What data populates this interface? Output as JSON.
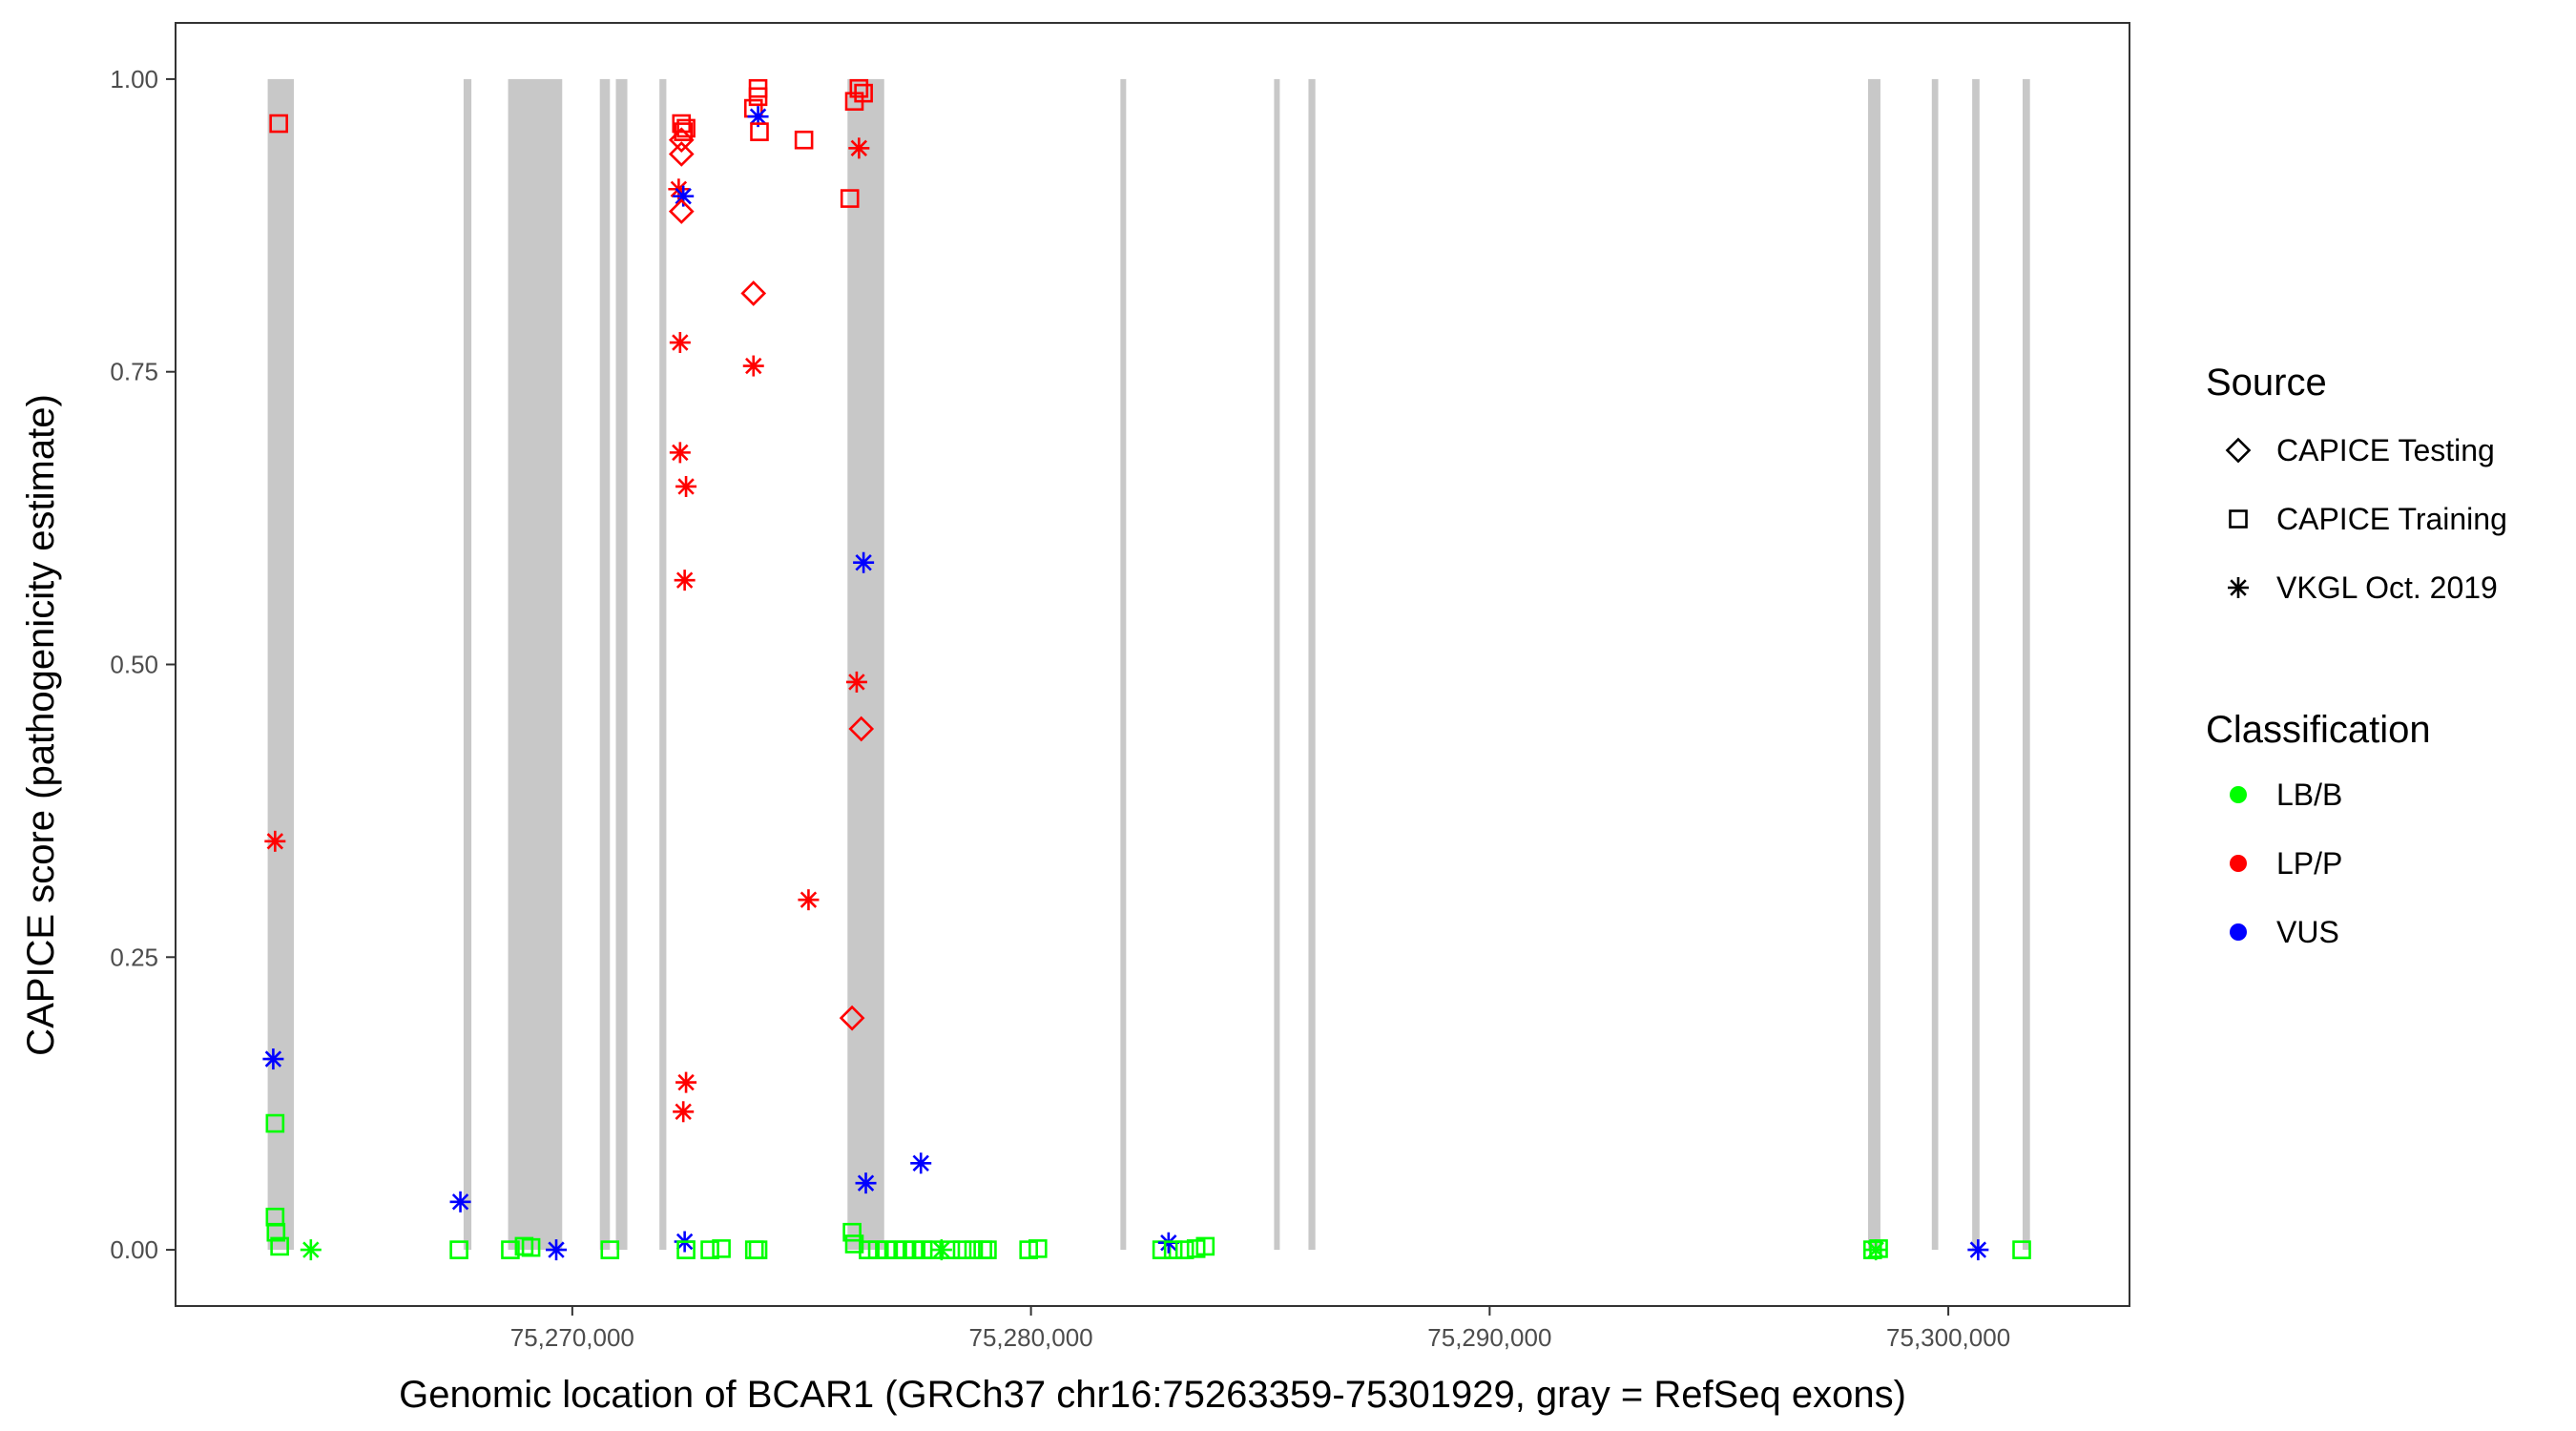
{
  "chart_data": {
    "type": "scatter",
    "title": "",
    "xlabel": "Genomic location of BCAR1 (GRCh37 chr16:75263359-75301929, gray = RefSeq exons)",
    "ylabel": "CAPICE score (pathogenicity estimate)",
    "xlim": [
      75261350,
      75303950
    ],
    "ylim": [
      -0.048,
      1.048
    ],
    "x_ticks": [
      75270000,
      75280000,
      75290000,
      75300000
    ],
    "x_tick_labels": [
      "75,270,000",
      "75,280,000",
      "75,290,000",
      "75,300,000"
    ],
    "y_ticks": [
      0,
      0.25,
      0.5,
      0.75,
      1.0
    ],
    "y_tick_labels": [
      "0.00",
      "0.25",
      "0.50",
      "0.75",
      "1.00"
    ],
    "grid": false,
    "exons": [
      [
        75263359,
        75263930
      ],
      [
        75267630,
        75267800
      ],
      [
        75268600,
        75269780
      ],
      [
        75270600,
        75270820
      ],
      [
        75270950,
        75271200
      ],
      [
        75271900,
        75272050
      ],
      [
        75276000,
        75276800
      ],
      [
        75281950,
        75282050
      ],
      [
        75285300,
        75285420
      ],
      [
        75286050,
        75286200
      ],
      [
        75298250,
        75298520
      ],
      [
        75299640,
        75299780
      ],
      [
        75300520,
        75300680
      ],
      [
        75301620,
        75301780
      ]
    ],
    "colors": {
      "LB/B": "#00ff00",
      "LP/P": "#ff0000",
      "VUS": "#0000ff",
      "exon": "#c8c8c8"
    },
    "legend": {
      "position": "right",
      "source_title": "Source",
      "source_items": [
        {
          "label": "CAPICE Testing",
          "shape": "diamond"
        },
        {
          "label": "CAPICE Training",
          "shape": "square"
        },
        {
          "label": "VKGL Oct. 2019",
          "shape": "asterisk"
        }
      ],
      "class_title": "Classification",
      "class_items": [
        {
          "label": "LB/B"
        },
        {
          "label": "LP/P"
        },
        {
          "label": "VUS"
        }
      ]
    },
    "points": [
      {
        "x": 75263600,
        "y": 0.962,
        "source": "CAPICE Training",
        "class": "LP/P"
      },
      {
        "x": 75263520,
        "y": 0.108,
        "source": "CAPICE Training",
        "class": "LB/B"
      },
      {
        "x": 75263520,
        "y": 0.028,
        "source": "CAPICE Training",
        "class": "LB/B"
      },
      {
        "x": 75263540,
        "y": 0.015,
        "source": "CAPICE Training",
        "class": "LB/B"
      },
      {
        "x": 75263620,
        "y": 0.003,
        "source": "CAPICE Training",
        "class": "LB/B"
      },
      {
        "x": 75263520,
        "y": 0.349,
        "source": "VKGL Oct. 2019",
        "class": "LP/P"
      },
      {
        "x": 75263480,
        "y": 0.163,
        "source": "VKGL Oct. 2019",
        "class": "VUS"
      },
      {
        "x": 75264300,
        "y": 0.0,
        "source": "VKGL Oct. 2019",
        "class": "LB/B"
      },
      {
        "x": 75267530,
        "y": 0.0,
        "source": "CAPICE Training",
        "class": "LB/B"
      },
      {
        "x": 75267560,
        "y": 0.041,
        "source": "VKGL Oct. 2019",
        "class": "VUS"
      },
      {
        "x": 75268650,
        "y": 0.0,
        "source": "CAPICE Training",
        "class": "LB/B"
      },
      {
        "x": 75268950,
        "y": 0.003,
        "source": "CAPICE Training",
        "class": "LB/B"
      },
      {
        "x": 75269100,
        "y": 0.002,
        "source": "CAPICE Training",
        "class": "LB/B"
      },
      {
        "x": 75269650,
        "y": 0.0,
        "source": "VKGL Oct. 2019",
        "class": "VUS"
      },
      {
        "x": 75270820,
        "y": 0.0,
        "source": "CAPICE Training",
        "class": "LB/B"
      },
      {
        "x": 75272380,
        "y": 0.962,
        "source": "CAPICE Training",
        "class": "LP/P"
      },
      {
        "x": 75272420,
        "y": 0.955,
        "source": "CAPICE Training",
        "class": "LP/P"
      },
      {
        "x": 75272480,
        "y": 0.958,
        "source": "CAPICE Training",
        "class": "LP/P"
      },
      {
        "x": 75272380,
        "y": 0.948,
        "source": "CAPICE Testing",
        "class": "LP/P"
      },
      {
        "x": 75272380,
        "y": 0.936,
        "source": "CAPICE Testing",
        "class": "LP/P"
      },
      {
        "x": 75272320,
        "y": 0.906,
        "source": "VKGL Oct. 2019",
        "class": "LP/P"
      },
      {
        "x": 75272420,
        "y": 0.9,
        "source": "VKGL Oct. 2019",
        "class": "VUS"
      },
      {
        "x": 75272380,
        "y": 0.887,
        "source": "CAPICE Testing",
        "class": "LP/P"
      },
      {
        "x": 75272350,
        "y": 0.775,
        "source": "VKGL Oct. 2019",
        "class": "LP/P"
      },
      {
        "x": 75272350,
        "y": 0.681,
        "source": "VKGL Oct. 2019",
        "class": "LP/P"
      },
      {
        "x": 75272480,
        "y": 0.652,
        "source": "VKGL Oct. 2019",
        "class": "LP/P"
      },
      {
        "x": 75272450,
        "y": 0.572,
        "source": "VKGL Oct. 2019",
        "class": "LP/P"
      },
      {
        "x": 75272480,
        "y": 0.143,
        "source": "VKGL Oct. 2019",
        "class": "LP/P"
      },
      {
        "x": 75272420,
        "y": 0.118,
        "source": "VKGL Oct. 2019",
        "class": "LP/P"
      },
      {
        "x": 75272450,
        "y": 0.007,
        "source": "VKGL Oct. 2019",
        "class": "VUS"
      },
      {
        "x": 75272480,
        "y": 0.0,
        "source": "CAPICE Training",
        "class": "LB/B"
      },
      {
        "x": 75273000,
        "y": 0.0,
        "source": "CAPICE Training",
        "class": "LB/B"
      },
      {
        "x": 75273250,
        "y": 0.001,
        "source": "CAPICE Training",
        "class": "LB/B"
      },
      {
        "x": 75274050,
        "y": 0.992,
        "source": "CAPICE Training",
        "class": "LP/P"
      },
      {
        "x": 75274050,
        "y": 0.985,
        "source": "CAPICE Training",
        "class": "LP/P"
      },
      {
        "x": 75273950,
        "y": 0.975,
        "source": "CAPICE Training",
        "class": "LP/P"
      },
      {
        "x": 75274050,
        "y": 0.968,
        "source": "VKGL Oct. 2019",
        "class": "VUS"
      },
      {
        "x": 75274080,
        "y": 0.955,
        "source": "CAPICE Training",
        "class": "LP/P"
      },
      {
        "x": 75273950,
        "y": 0.817,
        "source": "CAPICE Testing",
        "class": "LP/P"
      },
      {
        "x": 75273950,
        "y": 0.755,
        "source": "VKGL Oct. 2019",
        "class": "LP/P"
      },
      {
        "x": 75273970,
        "y": 0.0,
        "source": "CAPICE Training",
        "class": "LB/B"
      },
      {
        "x": 75274050,
        "y": 0.0,
        "source": "CAPICE Training",
        "class": "LB/B"
      },
      {
        "x": 75275050,
        "y": 0.948,
        "source": "CAPICE Training",
        "class": "LP/P"
      },
      {
        "x": 75275150,
        "y": 0.299,
        "source": "VKGL Oct. 2019",
        "class": "LP/P"
      },
      {
        "x": 75276050,
        "y": 0.898,
        "source": "CAPICE Training",
        "class": "LP/P"
      },
      {
        "x": 75276150,
        "y": 0.981,
        "source": "CAPICE Training",
        "class": "LP/P"
      },
      {
        "x": 75276250,
        "y": 0.992,
        "source": "CAPICE Training",
        "class": "LP/P"
      },
      {
        "x": 75276350,
        "y": 0.988,
        "source": "CAPICE Training",
        "class": "LP/P"
      },
      {
        "x": 75276250,
        "y": 0.941,
        "source": "VKGL Oct. 2019",
        "class": "LP/P"
      },
      {
        "x": 75276350,
        "y": 0.587,
        "source": "VKGL Oct. 2019",
        "class": "VUS"
      },
      {
        "x": 75276200,
        "y": 0.485,
        "source": "VKGL Oct. 2019",
        "class": "LP/P"
      },
      {
        "x": 75276300,
        "y": 0.445,
        "source": "CAPICE Testing",
        "class": "LP/P"
      },
      {
        "x": 75276100,
        "y": 0.198,
        "source": "CAPICE Testing",
        "class": "LP/P"
      },
      {
        "x": 75276400,
        "y": 0.057,
        "source": "VKGL Oct. 2019",
        "class": "VUS"
      },
      {
        "x": 75277600,
        "y": 0.074,
        "source": "VKGL Oct. 2019",
        "class": "VUS"
      },
      {
        "x": 75276100,
        "y": 0.015,
        "source": "CAPICE Training",
        "class": "LB/B"
      },
      {
        "x": 75276150,
        "y": 0.005,
        "source": "CAPICE Training",
        "class": "LB/B"
      },
      {
        "x": 75276450,
        "y": 0.0,
        "source": "CAPICE Training",
        "class": "LB/B"
      },
      {
        "x": 75276650,
        "y": 0.0,
        "source": "CAPICE Training",
        "class": "LB/B"
      },
      {
        "x": 75276850,
        "y": 0.0,
        "source": "CAPICE Training",
        "class": "LB/B"
      },
      {
        "x": 75277050,
        "y": 0.0,
        "source": "CAPICE Training",
        "class": "LB/B"
      },
      {
        "x": 75277250,
        "y": 0.0,
        "source": "CAPICE Training",
        "class": "LB/B"
      },
      {
        "x": 75277450,
        "y": 0.0,
        "source": "CAPICE Training",
        "class": "LB/B"
      },
      {
        "x": 75277650,
        "y": 0.0,
        "source": "CAPICE Training",
        "class": "LB/B"
      },
      {
        "x": 75277850,
        "y": 0.0,
        "source": "CAPICE Training",
        "class": "LB/B"
      },
      {
        "x": 75278050,
        "y": 0.0,
        "source": "VKGL Oct. 2019",
        "class": "LB/B"
      },
      {
        "x": 75278250,
        "y": 0.0,
        "source": "CAPICE Training",
        "class": "LB/B"
      },
      {
        "x": 75278500,
        "y": 0.0,
        "source": "CAPICE Training",
        "class": "LB/B"
      },
      {
        "x": 75278750,
        "y": 0.0,
        "source": "CAPICE Training",
        "class": "LB/B"
      },
      {
        "x": 75278950,
        "y": 0.0,
        "source": "CAPICE Training",
        "class": "LB/B"
      },
      {
        "x": 75279050,
        "y": 0.0,
        "source": "CAPICE Training",
        "class": "LB/B"
      },
      {
        "x": 75279950,
        "y": 0.0,
        "source": "CAPICE Training",
        "class": "LB/B"
      },
      {
        "x": 75280150,
        "y": 0.001,
        "source": "CAPICE Training",
        "class": "LB/B"
      },
      {
        "x": 75282850,
        "y": 0.0,
        "source": "CAPICE Training",
        "class": "LB/B"
      },
      {
        "x": 75283000,
        "y": 0.006,
        "source": "VKGL Oct. 2019",
        "class": "VUS"
      },
      {
        "x": 75283100,
        "y": 0.0,
        "source": "CAPICE Training",
        "class": "LB/B"
      },
      {
        "x": 75283350,
        "y": 0.0,
        "source": "CAPICE Training",
        "class": "LB/B"
      },
      {
        "x": 75283600,
        "y": 0.001,
        "source": "CAPICE Training",
        "class": "LB/B"
      },
      {
        "x": 75283800,
        "y": 0.003,
        "source": "CAPICE Training",
        "class": "LB/B"
      },
      {
        "x": 75298350,
        "y": 0.0,
        "source": "CAPICE Training",
        "class": "LB/B"
      },
      {
        "x": 75298420,
        "y": 0.0,
        "source": "VKGL Oct. 2019",
        "class": "LB/B"
      },
      {
        "x": 75298480,
        "y": 0.001,
        "source": "CAPICE Training",
        "class": "LB/B"
      },
      {
        "x": 75300650,
        "y": 0.0,
        "source": "VKGL Oct. 2019",
        "class": "VUS"
      },
      {
        "x": 75301600,
        "y": 0.0,
        "source": "CAPICE Training",
        "class": "LB/B"
      }
    ]
  }
}
